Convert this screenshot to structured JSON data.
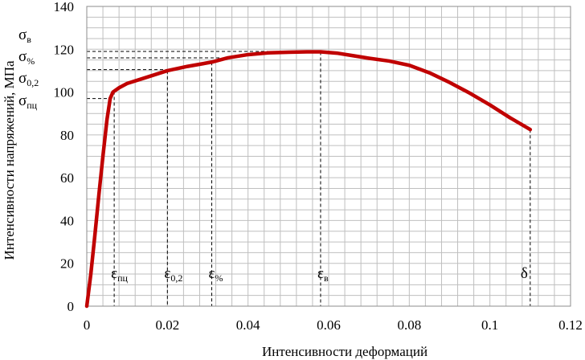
{
  "chart_data": {
    "type": "line",
    "xlabel": "Интенсивности деформаций",
    "ylabel": "Интенсивности напряжений, МПа",
    "xlim": [
      0,
      0.12
    ],
    "ylim": [
      0,
      140
    ],
    "x_ticks": [
      "0",
      "0.02",
      "0.04",
      "0.06",
      "0.08",
      "0.1",
      "0.12"
    ],
    "y_ticks": [
      "0",
      "20",
      "40",
      "60",
      "80",
      "100",
      "120",
      "140"
    ],
    "grid": true,
    "line_color": "#c00000",
    "series": [
      {
        "points": [
          [
            0,
            0
          ],
          [
            0.001,
            15
          ],
          [
            0.002,
            33
          ],
          [
            0.003,
            52
          ],
          [
            0.004,
            70
          ],
          [
            0.005,
            87
          ],
          [
            0.0058,
            97
          ],
          [
            0.0065,
            100
          ],
          [
            0.008,
            102
          ],
          [
            0.01,
            104
          ],
          [
            0.015,
            107
          ],
          [
            0.02,
            110
          ],
          [
            0.025,
            112
          ],
          [
            0.031,
            114
          ],
          [
            0.035,
            116
          ],
          [
            0.04,
            117.5
          ],
          [
            0.045,
            118.3
          ],
          [
            0.05,
            118.6
          ],
          [
            0.055,
            118.8
          ],
          [
            0.058,
            118.8
          ],
          [
            0.062,
            118.2
          ],
          [
            0.066,
            117
          ],
          [
            0.07,
            115.8
          ],
          [
            0.075,
            114.5
          ],
          [
            0.08,
            112.5
          ],
          [
            0.085,
            109
          ],
          [
            0.09,
            104.5
          ],
          [
            0.095,
            99.5
          ],
          [
            0.1,
            94
          ],
          [
            0.105,
            88
          ],
          [
            0.11,
            82.5
          ]
        ]
      }
    ],
    "annotations": {
      "stress_labels": [
        {
          "base": "σ",
          "sub": "в",
          "value": 119
        },
        {
          "base": "σ",
          "sub": "%",
          "value": 116
        },
        {
          "base": "σ",
          "sub": "0,2",
          "value": 110.5
        },
        {
          "base": "σ",
          "sub": "пц",
          "value": 97
        }
      ],
      "strain_labels": [
        {
          "base": "ε",
          "sub": "пц",
          "value": 0.0068
        },
        {
          "base": "ε",
          "sub": "0,2",
          "value": 0.02
        },
        {
          "base": "ε",
          "sub": "%",
          "value": 0.031
        },
        {
          "base": "ε",
          "sub": "в",
          "value": 0.058
        },
        {
          "base": "δ",
          "sub": "",
          "value": 0.11
        }
      ]
    }
  }
}
